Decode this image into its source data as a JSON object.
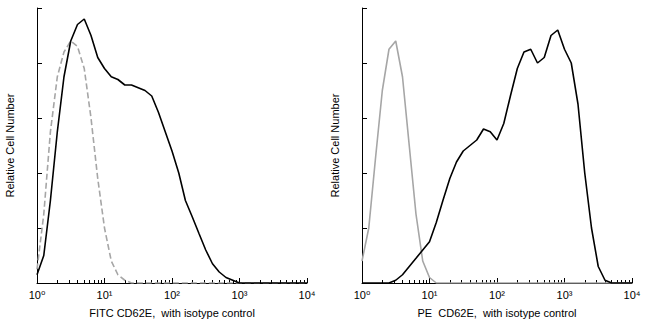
{
  "chart_data": [
    {
      "type": "line",
      "x_label": "FITC CD62E,  with isotype control",
      "y_label": "Relative Cell Number",
      "log": "x",
      "tick_labels": "x",
      "xlim": [
        1,
        10000
      ],
      "xticks": [
        {
          "value": 1,
          "label": "10⁰"
        },
        {
          "value": 10,
          "label": "10¹"
        },
        {
          "value": 100,
          "label": "10²"
        },
        {
          "value": 1000,
          "label": "10³"
        },
        {
          "value": 10000,
          "label": "10⁴"
        }
      ],
      "ylim": [
        0,
        100
      ],
      "yticks": [
        0,
        20,
        40,
        60,
        80,
        100
      ],
      "x": [
        1,
        1.26,
        1.58,
        2,
        2.51,
        3.16,
        3.98,
        5.01,
        6.31,
        7.94,
        10,
        12.6,
        15.8,
        20,
        25.1,
        31.6,
        39.8,
        50.1,
        63.1,
        79.4,
        100,
        126,
        158,
        200,
        251,
        316,
        398,
        501,
        631,
        794,
        1000,
        1259,
        1585,
        1995,
        2512,
        3162,
        3981,
        5012,
        6310,
        7943,
        10000
      ],
      "series": [
        {
          "color": "#a6a6a6",
          "line_style": "dashed",
          "values": [
            5,
            25,
            55,
            75,
            84,
            88,
            86,
            78,
            60,
            38,
            20,
            8,
            3,
            1,
            0,
            0,
            0,
            0,
            0,
            0,
            0,
            0,
            0,
            0,
            0,
            0,
            0,
            0,
            0,
            0,
            0,
            0,
            0,
            0,
            0,
            0,
            0,
            0,
            0,
            0,
            0
          ]
        },
        {
          "color": "#000000",
          "line_style": "solid",
          "values": [
            3,
            10,
            30,
            55,
            75,
            88,
            94,
            96,
            90,
            82,
            78,
            75,
            74,
            72,
            72,
            71,
            70,
            68,
            62,
            55,
            48,
            40,
            30,
            24,
            18,
            12,
            7,
            4,
            2,
            1,
            0,
            0,
            0,
            0,
            0,
            0,
            0,
            0,
            0,
            0,
            0
          ]
        }
      ]
    },
    {
      "type": "line",
      "x_label": "PE  CD62E,  with isotype control",
      "y_label": "Relative Cell Number",
      "log": "x",
      "tick_labels": "x",
      "xlim": [
        1,
        10000
      ],
      "xticks": [
        {
          "value": 1,
          "label": "10⁰"
        },
        {
          "value": 10,
          "label": "10¹"
        },
        {
          "value": 100,
          "label": "10²"
        },
        {
          "value": 1000,
          "label": "10³"
        },
        {
          "value": 10000,
          "label": "10⁴"
        }
      ],
      "ylim": [
        0,
        100
      ],
      "yticks": [
        0,
        20,
        40,
        60,
        80,
        100
      ],
      "x": [
        1,
        1.26,
        1.58,
        2,
        2.51,
        3.16,
        3.98,
        5.01,
        6.31,
        7.94,
        10,
        12.6,
        15.8,
        20,
        25.1,
        31.6,
        39.8,
        50.1,
        63.1,
        79.4,
        100,
        126,
        158,
        200,
        251,
        316,
        398,
        501,
        631,
        794,
        1000,
        1259,
        1585,
        1995,
        2512,
        3162,
        3981,
        5012,
        6310,
        7943,
        10000
      ],
      "series": [
        {
          "color": "#a6a6a6",
          "line_style": "solid",
          "values": [
            8,
            20,
            45,
            70,
            85,
            88,
            75,
            50,
            25,
            8,
            2,
            0,
            0,
            0,
            0,
            0,
            0,
            0,
            0,
            0,
            0,
            0,
            0,
            0,
            0,
            0,
            0,
            0,
            0,
            0,
            0,
            0,
            0,
            0,
            0,
            0,
            0,
            0,
            0,
            0,
            0
          ]
        },
        {
          "color": "#000000",
          "line_style": "solid",
          "values": [
            0,
            0,
            0,
            0,
            0,
            1,
            3,
            6,
            9,
            12,
            15,
            22,
            30,
            38,
            44,
            48,
            50,
            52,
            56,
            55,
            52,
            58,
            68,
            78,
            84,
            85,
            80,
            82,
            90,
            92,
            85,
            80,
            65,
            40,
            20,
            6,
            1,
            0,
            0,
            0,
            0
          ]
        }
      ]
    }
  ]
}
